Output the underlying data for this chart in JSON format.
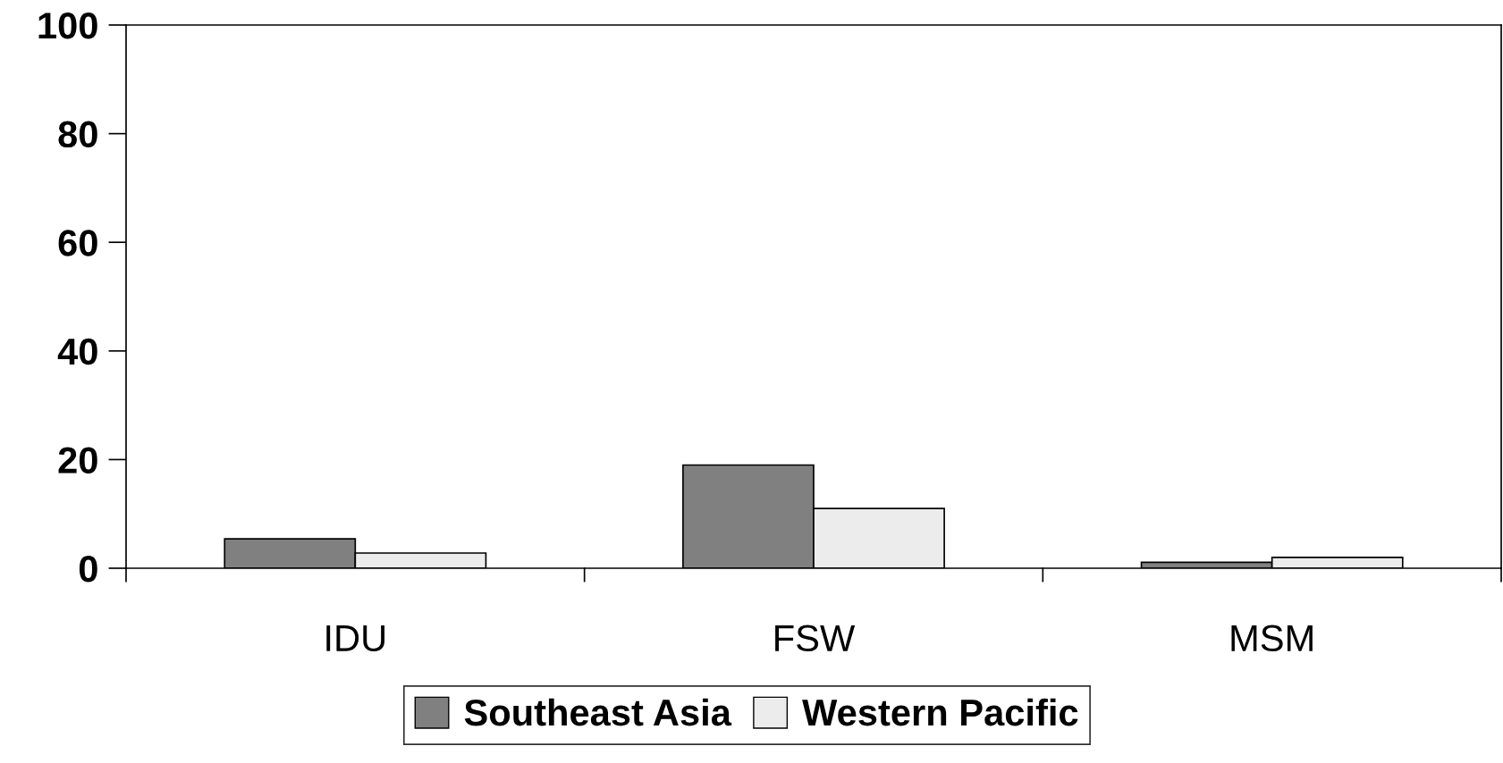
{
  "chart_data": {
    "type": "bar",
    "categories": [
      "IDU",
      "FSW",
      "MSM"
    ],
    "series": [
      {
        "name": "Southeast Asia",
        "color": "#808080",
        "values": [
          5.4,
          19.0,
          1.1
        ]
      },
      {
        "name": "Western Pacific",
        "color": "#ececec",
        "values": [
          2.8,
          11.0,
          2.0
        ]
      }
    ],
    "ylim": [
      0,
      100
    ],
    "yticks": [
      0,
      20,
      40,
      60,
      80,
      100
    ],
    "grid": false,
    "legend": "bottom"
  }
}
